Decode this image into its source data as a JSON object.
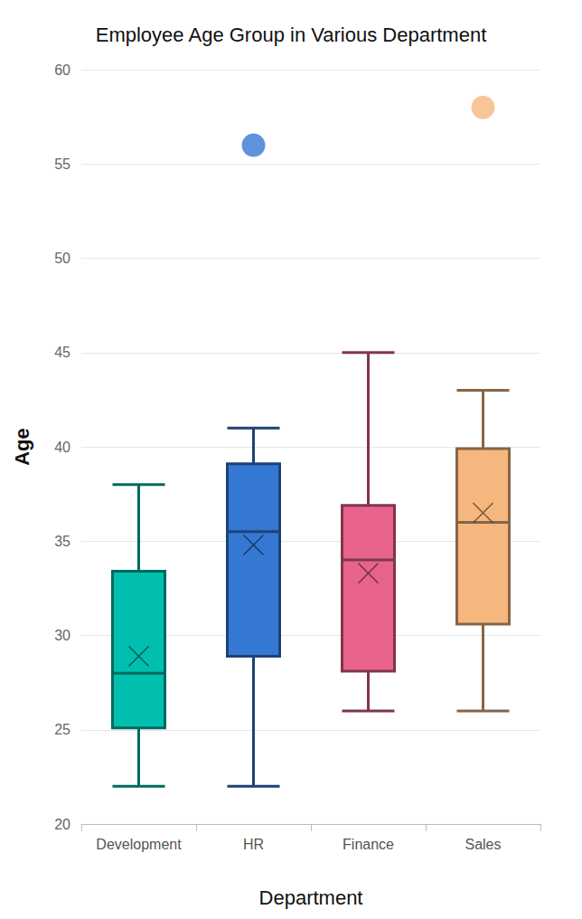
{
  "chart_data": {
    "type": "boxplot",
    "title": "Employee Age Group in Various Department",
    "x_label": "Department",
    "y_label": "Age",
    "categories": [
      "Development",
      "HR",
      "Finance",
      "Sales"
    ],
    "boxes": [
      {
        "min": 22,
        "q1": 25.1,
        "median": 28,
        "q3": 33.4,
        "max": 38,
        "mean": 28.9,
        "outliers": []
      },
      {
        "min": 22,
        "q1": 28.9,
        "median": 35.5,
        "q3": 39.1,
        "max": 41,
        "mean": 34.8,
        "outliers": [
          56
        ]
      },
      {
        "min": 26,
        "q1": 28.1,
        "median": 34,
        "q3": 36.9,
        "max": 45,
        "mean": 33.3,
        "outliers": []
      },
      {
        "min": 26,
        "q1": 30.6,
        "median": 36,
        "q3": 39.9,
        "max": 43,
        "mean": 36.5,
        "outliers": [
          58
        ]
      }
    ],
    "colors": [
      "#00bfae",
      "#3478d4",
      "#e8638b",
      "#f6b77f"
    ],
    "marker": "x",
    "ylim": [
      20,
      60
    ],
    "yticks": [
      20,
      25,
      30,
      35,
      40,
      45,
      50,
      55,
      60
    ],
    "grid": true
  }
}
